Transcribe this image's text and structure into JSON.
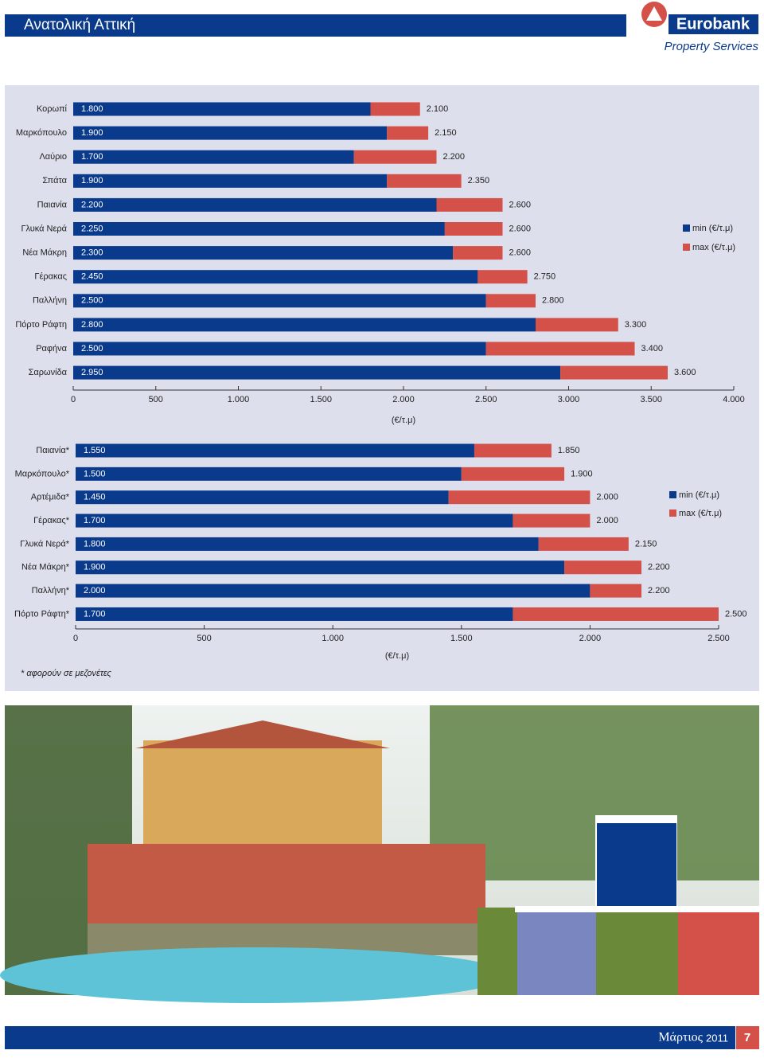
{
  "header": {
    "title": "Ανατολική Αττική",
    "brand": "Eurobank",
    "subbrand": "Property Services"
  },
  "footer": {
    "month": "Μάρτιος",
    "year": "2011",
    "page": "7"
  },
  "chart_data": [
    {
      "type": "bar",
      "orientation": "horizontal",
      "x_label": "(€/τ.μ)",
      "legend_position": "right",
      "categories": [
        "Κορωπί",
        "Μαρκόπουλο",
        "Λαύριο",
        "Σπάτα",
        "Παιανία",
        "Γλυκά Νερά",
        "Νέα Μάκρη",
        "Γέρακας",
        "Παλλήνη",
        "Πόρτο Ράφτη",
        "Ραφήνα",
        "Σαρωνίδα"
      ],
      "series": [
        {
          "name": "min (€/τ.μ)",
          "color": "#0a3a8c",
          "values": [
            1800,
            1900,
            1700,
            1900,
            2200,
            2250,
            2300,
            2450,
            2500,
            2800,
            2500,
            2950
          ],
          "value_labels": [
            "1.800",
            "1.900",
            "1.700",
            "1.900",
            "2.200",
            "2.250",
            "2.300",
            "2.450",
            "2.500",
            "2.800",
            "2.500",
            "2.950"
          ]
        },
        {
          "name": "max (€/τ.μ)",
          "color": "#d4514a",
          "values": [
            2100,
            2150,
            2200,
            2350,
            2600,
            2600,
            2600,
            2750,
            2800,
            3300,
            3400,
            3600
          ],
          "value_labels": [
            "2.100",
            "2.150",
            "2.200",
            "2.350",
            "2.600",
            "2.600",
            "2.600",
            "2.750",
            "2.800",
            "3.300",
            "3.400",
            "3.600"
          ]
        }
      ],
      "xlim": [
        0,
        4000
      ],
      "xticks": [
        0,
        500,
        {
          "value": 1000,
          "label": "1.000"
        },
        {
          "value": 1500,
          "label": "1.500"
        },
        {
          "value": 2000,
          "label": "2.000"
        },
        {
          "value": 2500,
          "label": "2.500"
        },
        {
          "value": 3000,
          "label": "3.000"
        },
        {
          "value": 3500,
          "label": "3.500"
        },
        {
          "value": 4000,
          "label": "4.000"
        }
      ]
    },
    {
      "type": "bar",
      "orientation": "horizontal",
      "x_label": "(€/τ.μ)",
      "legend_position": "right",
      "note": "* αφορούν σε μεζονέτες",
      "categories": [
        "Παιανία*",
        "Μαρκόπουλο*",
        "Αρτέμιδα*",
        "Γέρακας*",
        "Γλυκά Νερά*",
        "Νέα Μάκρη*",
        "Παλλήνη*",
        "Πόρτο Ράφτη*"
      ],
      "series": [
        {
          "name": "min (€/τ.μ)",
          "color": "#0a3a8c",
          "values": [
            1550,
            1500,
            1450,
            1700,
            1800,
            1900,
            2000,
            1700
          ],
          "value_labels": [
            "1.550",
            "1.500",
            "1.450",
            "1.700",
            "1.800",
            "1.900",
            "2.000",
            "1.700"
          ]
        },
        {
          "name": "max (€/τ.μ)",
          "color": "#d4514a",
          "values": [
            1850,
            1900,
            2000,
            2000,
            2150,
            2200,
            2200,
            2500
          ],
          "value_labels": [
            "1.850",
            "1.900",
            "2.000",
            "2.000",
            "2.150",
            "2.200",
            "2.200",
            "2.500"
          ]
        }
      ],
      "xlim": [
        0,
        2500
      ],
      "xticks": [
        0,
        500,
        {
          "value": 1000,
          "label": "1.000"
        },
        {
          "value": 1500,
          "label": "1.500"
        },
        {
          "value": 2000,
          "label": "2.000"
        },
        {
          "value": 2500,
          "label": "2.500"
        }
      ]
    }
  ]
}
